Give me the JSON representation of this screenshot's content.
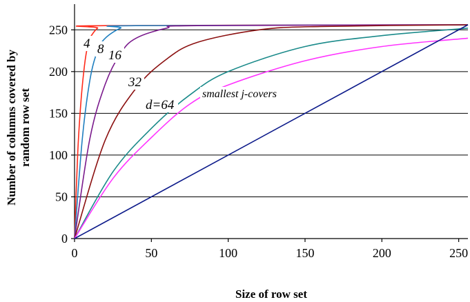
{
  "chart_data": {
    "type": "line",
    "title": "",
    "xlabel": "Size of row set",
    "ylabel_lines": [
      "Number of columns covered by",
      "random row set"
    ],
    "xlim": [
      0,
      256
    ],
    "ylim": [
      0,
      256
    ],
    "xticks": [
      0,
      50,
      100,
      150,
      200,
      250
    ],
    "yticks": [
      0,
      50,
      100,
      150,
      200,
      250
    ],
    "grid": "horizontal",
    "series": [
      {
        "name": "4",
        "label": "4",
        "d": 4,
        "color": "#ff2a1a",
        "x": [
          0,
          2,
          4,
          6,
          8,
          10,
          15,
          20,
          256
        ],
        "values": [
          0,
          100,
          160,
          200,
          226,
          240,
          252,
          255,
          256
        ]
      },
      {
        "name": "8",
        "label": "8",
        "d": 8,
        "color": "#1f7fc0",
        "x": [
          0,
          5,
          10,
          15,
          20,
          30,
          40,
          256
        ],
        "values": [
          0,
          118,
          190,
          225,
          240,
          252,
          255,
          256
        ]
      },
      {
        "name": "16",
        "label": "16",
        "d": 16,
        "color": "#7a1a8c",
        "x": [
          0,
          10,
          20,
          30,
          40,
          60,
          80,
          256
        ],
        "values": [
          0,
          120,
          185,
          222,
          240,
          252,
          255,
          256
        ]
      },
      {
        "name": "32",
        "label": "32",
        "d": 32,
        "color": "#8b1010",
        "x": [
          0,
          20,
          40,
          60,
          80,
          120,
          160,
          256
        ],
        "values": [
          0,
          118,
          180,
          215,
          235,
          250,
          254,
          256
        ]
      },
      {
        "name": "d=64",
        "label": "d=64",
        "d": 64,
        "color": "#1a8a8a",
        "x": [
          0,
          25,
          50,
          75,
          100,
          150,
          200,
          256
        ],
        "values": [
          0,
          80,
          132,
          172,
          200,
          230,
          243,
          252
        ]
      },
      {
        "name": "smallest j-covers",
        "label": "smallest j-covers",
        "color": "#ff33ff",
        "x": [
          0,
          25,
          50,
          75,
          100,
          150,
          200,
          256
        ],
        "values": [
          0,
          72,
          121,
          161,
          184,
          213,
          230,
          240
        ]
      },
      {
        "name": "diagonal",
        "label": "",
        "color": "#0c1a8a",
        "x": [
          0,
          256
        ],
        "values": [
          0,
          256
        ]
      }
    ]
  }
}
